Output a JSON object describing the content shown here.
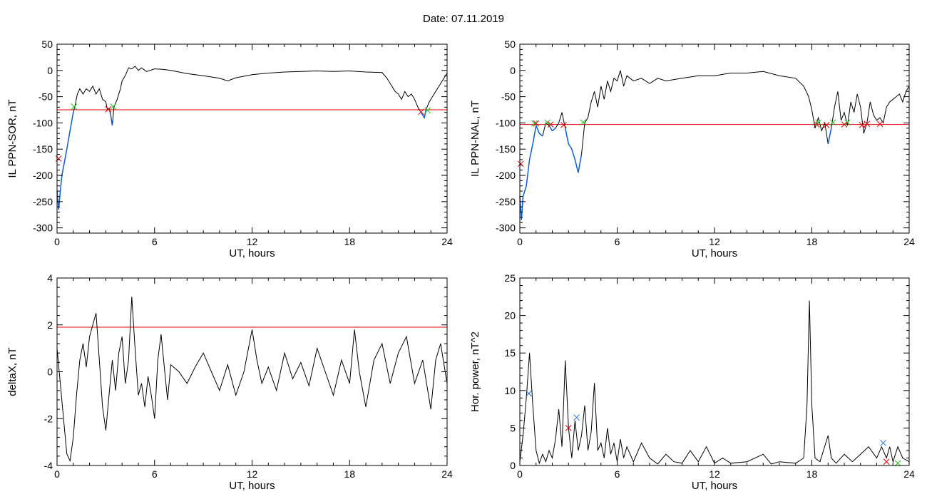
{
  "title": "Date:  07.11.2019",
  "colors": {
    "trace": "#000000",
    "threshold": "#e00000",
    "below": "#1060d0",
    "marker_red": "#e00000",
    "marker_green": "#20c020",
    "marker_blue": "#2070d0"
  },
  "chart_data": [
    {
      "id": "sor",
      "type": "line",
      "xlabel": "UT, hours",
      "ylabel": "IL PPN-SOR, nT",
      "xlim": [
        0,
        24
      ],
      "ylim": [
        -310,
        50
      ],
      "xticks": [
        0,
        6,
        12,
        18,
        24
      ],
      "yticks": [
        -300,
        -250,
        -200,
        -150,
        -100,
        -50,
        0,
        50
      ],
      "threshold": -75,
      "points": [
        [
          0,
          -230
        ],
        [
          0.1,
          -265
        ],
        [
          0.2,
          -230
        ],
        [
          0.3,
          -200
        ],
        [
          0.45,
          -175
        ],
        [
          0.6,
          -150
        ],
        [
          0.8,
          -115
        ],
        [
          1.0,
          -80
        ],
        [
          1.1,
          -68
        ],
        [
          1.25,
          -45
        ],
        [
          1.4,
          -35
        ],
        [
          1.6,
          -45
        ],
        [
          1.8,
          -35
        ],
        [
          2.0,
          -40
        ],
        [
          2.2,
          -30
        ],
        [
          2.4,
          -45
        ],
        [
          2.6,
          -35
        ],
        [
          2.8,
          -55
        ],
        [
          3.0,
          -60
        ],
        [
          3.1,
          -75
        ],
        [
          3.2,
          -72
        ],
        [
          3.3,
          -85
        ],
        [
          3.4,
          -105
        ],
        [
          3.5,
          -70
        ],
        [
          3.7,
          -55
        ],
        [
          3.9,
          -35
        ],
        [
          4.0,
          -20
        ],
        [
          4.2,
          -10
        ],
        [
          4.4,
          5
        ],
        [
          4.6,
          3
        ],
        [
          4.8,
          8
        ],
        [
          5.0,
          0
        ],
        [
          5.2,
          5
        ],
        [
          5.5,
          -2
        ],
        [
          6.0,
          3
        ],
        [
          6.5,
          2
        ],
        [
          7.0,
          0
        ],
        [
          7.5,
          -3
        ],
        [
          8.0,
          -6
        ],
        [
          9.0,
          -10
        ],
        [
          10.0,
          -15
        ],
        [
          10.5,
          -20
        ],
        [
          11.0,
          -14
        ],
        [
          12.0,
          -8
        ],
        [
          13.0,
          -5
        ],
        [
          14.0,
          -3
        ],
        [
          15.0,
          -2
        ],
        [
          16.0,
          -1
        ],
        [
          17.0,
          -2
        ],
        [
          18.0,
          -1
        ],
        [
          19.0,
          -3
        ],
        [
          20.0,
          -4
        ],
        [
          20.3,
          -15
        ],
        [
          20.6,
          -30
        ],
        [
          20.8,
          -40
        ],
        [
          21.0,
          -45
        ],
        [
          21.2,
          -55
        ],
        [
          21.4,
          -40
        ],
        [
          21.6,
          -50
        ],
        [
          21.8,
          -45
        ],
        [
          22.0,
          -55
        ],
        [
          22.2,
          -70
        ],
        [
          22.4,
          -80
        ],
        [
          22.6,
          -90
        ],
        [
          22.7,
          -75
        ],
        [
          22.9,
          -60
        ],
        [
          23.1,
          -50
        ],
        [
          23.3,
          -40
        ],
        [
          23.5,
          -30
        ],
        [
          23.7,
          -20
        ],
        [
          23.9,
          -10
        ],
        [
          24.0,
          -5
        ]
      ],
      "markers": [
        {
          "x": 0.1,
          "y": -168,
          "color": "red"
        },
        {
          "x": 1.05,
          "y": -69,
          "color": "green"
        },
        {
          "x": 3.15,
          "y": -74,
          "color": "red"
        },
        {
          "x": 3.45,
          "y": -69,
          "color": "green"
        },
        {
          "x": 22.4,
          "y": -79,
          "color": "red"
        },
        {
          "x": 22.8,
          "y": -76,
          "color": "green"
        }
      ]
    },
    {
      "id": "nal",
      "type": "line",
      "xlabel": "UT, hours",
      "ylabel": "IL PPN-NAL, nT",
      "xlim": [
        0,
        24
      ],
      "ylim": [
        -310,
        50
      ],
      "xticks": [
        0,
        6,
        12,
        18,
        24
      ],
      "yticks": [
        -300,
        -250,
        -200,
        -150,
        -100,
        -50,
        0,
        50
      ],
      "threshold": -103,
      "points": [
        [
          0,
          -240
        ],
        [
          0.1,
          -285
        ],
        [
          0.2,
          -240
        ],
        [
          0.4,
          -220
        ],
        [
          0.6,
          -170
        ],
        [
          0.8,
          -140
        ],
        [
          1.0,
          -105
        ],
        [
          1.2,
          -120
        ],
        [
          1.4,
          -125
        ],
        [
          1.6,
          -100
        ],
        [
          1.8,
          -105
        ],
        [
          2.0,
          -115
        ],
        [
          2.2,
          -110
        ],
        [
          2.4,
          -100
        ],
        [
          2.6,
          -80
        ],
        [
          2.8,
          -110
        ],
        [
          3.0,
          -140
        ],
        [
          3.2,
          -150
        ],
        [
          3.4,
          -170
        ],
        [
          3.6,
          -195
        ],
        [
          3.8,
          -160
        ],
        [
          4.0,
          -100
        ],
        [
          4.2,
          -90
        ],
        [
          4.4,
          -60
        ],
        [
          4.6,
          -40
        ],
        [
          4.8,
          -70
        ],
        [
          5.0,
          -30
        ],
        [
          5.2,
          -55
        ],
        [
          5.4,
          -20
        ],
        [
          5.6,
          -40
        ],
        [
          5.8,
          -15
        ],
        [
          6.0,
          -20
        ],
        [
          6.2,
          0
        ],
        [
          6.4,
          -30
        ],
        [
          6.6,
          -10
        ],
        [
          6.8,
          -15
        ],
        [
          7.0,
          -20
        ],
        [
          7.5,
          -15
        ],
        [
          8.0,
          -25
        ],
        [
          8.5,
          -15
        ],
        [
          9.0,
          -20
        ],
        [
          10.0,
          -15
        ],
        [
          11.0,
          -10
        ],
        [
          12.0,
          -10
        ],
        [
          13.0,
          -5
        ],
        [
          14.0,
          -5
        ],
        [
          15.0,
          -2
        ],
        [
          16.0,
          -10
        ],
        [
          17.0,
          -15
        ],
        [
          17.5,
          -30
        ],
        [
          17.8,
          -50
        ],
        [
          18.0,
          -75
        ],
        [
          18.2,
          -110
        ],
        [
          18.4,
          -90
        ],
        [
          18.6,
          -115
        ],
        [
          18.8,
          -100
        ],
        [
          19.0,
          -140
        ],
        [
          19.2,
          -110
        ],
        [
          19.4,
          -70
        ],
        [
          19.6,
          -40
        ],
        [
          19.8,
          -95
        ],
        [
          20.0,
          -80
        ],
        [
          20.2,
          -105
        ],
        [
          20.4,
          -60
        ],
        [
          20.6,
          -80
        ],
        [
          20.8,
          -45
        ],
        [
          21.0,
          -70
        ],
        [
          21.2,
          -120
        ],
        [
          21.4,
          -100
        ],
        [
          21.6,
          -60
        ],
        [
          21.8,
          -85
        ],
        [
          22.0,
          -95
        ],
        [
          22.2,
          -90
        ],
        [
          22.4,
          -100
        ],
        [
          22.6,
          -70
        ],
        [
          22.8,
          -60
        ],
        [
          23.0,
          -55
        ],
        [
          23.2,
          -50
        ],
        [
          23.4,
          -45
        ],
        [
          23.6,
          -60
        ],
        [
          23.8,
          -40
        ],
        [
          24.0,
          -30
        ]
      ],
      "markers": [
        {
          "x": 0.05,
          "y": -178,
          "color": "red"
        },
        {
          "x": 0.9,
          "y": -101,
          "color": "green"
        },
        {
          "x": 1.0,
          "y": -101,
          "color": "red"
        },
        {
          "x": 1.7,
          "y": -99,
          "color": "green"
        },
        {
          "x": 1.9,
          "y": -103,
          "color": "red"
        },
        {
          "x": 2.7,
          "y": -104,
          "color": "red"
        },
        {
          "x": 3.9,
          "y": -99,
          "color": "green"
        },
        {
          "x": 18.3,
          "y": -103,
          "color": "red"
        },
        {
          "x": 18.4,
          "y": -99,
          "color": "green"
        },
        {
          "x": 18.9,
          "y": -104,
          "color": "red"
        },
        {
          "x": 19.3,
          "y": -99,
          "color": "green"
        },
        {
          "x": 20.0,
          "y": -103,
          "color": "red"
        },
        {
          "x": 20.2,
          "y": -99,
          "color": "green"
        },
        {
          "x": 21.1,
          "y": -104,
          "color": "red"
        },
        {
          "x": 21.4,
          "y": -102,
          "color": "red"
        },
        {
          "x": 22.2,
          "y": -102,
          "color": "red"
        }
      ]
    },
    {
      "id": "deltax",
      "type": "line",
      "xlabel": "UT, hours",
      "ylabel": "deltaX, nT",
      "xlim": [
        0,
        24
      ],
      "ylim": [
        -4,
        4
      ],
      "xticks": [
        0,
        6,
        12,
        18,
        24
      ],
      "yticks": [
        -4,
        -2,
        0,
        2,
        4
      ],
      "threshold": 1.9,
      "points": [
        [
          0,
          1.0
        ],
        [
          0.2,
          -0.5
        ],
        [
          0.4,
          -2.0
        ],
        [
          0.6,
          -3.5
        ],
        [
          0.8,
          -3.8
        ],
        [
          1.0,
          -2.8
        ],
        [
          1.2,
          -1.0
        ],
        [
          1.4,
          0.5
        ],
        [
          1.6,
          1.2
        ],
        [
          1.8,
          0.2
        ],
        [
          2.0,
          1.5
        ],
        [
          2.2,
          2.0
        ],
        [
          2.4,
          2.5
        ],
        [
          2.6,
          0.5
        ],
        [
          2.8,
          -1.5
        ],
        [
          3.0,
          -2.5
        ],
        [
          3.2,
          -1.0
        ],
        [
          3.4,
          0.5
        ],
        [
          3.6,
          -0.8
        ],
        [
          3.8,
          0.8
        ],
        [
          4.0,
          1.5
        ],
        [
          4.2,
          -0.5
        ],
        [
          4.4,
          0.5
        ],
        [
          4.6,
          3.2
        ],
        [
          4.8,
          1.0
        ],
        [
          5.0,
          -1.0
        ],
        [
          5.2,
          -0.5
        ],
        [
          5.4,
          -1.5
        ],
        [
          5.6,
          -0.2
        ],
        [
          5.8,
          -1.0
        ],
        [
          6.0,
          -2.0
        ],
        [
          6.2,
          0.5
        ],
        [
          6.4,
          1.6
        ],
        [
          6.6,
          0.2
        ],
        [
          6.8,
          -1.2
        ],
        [
          7.0,
          0.3
        ],
        [
          7.5,
          0.0
        ],
        [
          8.0,
          -0.5
        ],
        [
          8.5,
          0.2
        ],
        [
          9.0,
          0.8
        ],
        [
          9.5,
          0.0
        ],
        [
          10.0,
          -0.8
        ],
        [
          10.5,
          0.3
        ],
        [
          11.0,
          -1.0
        ],
        [
          11.5,
          0.0
        ],
        [
          12.0,
          1.8
        ],
        [
          12.3,
          0.5
        ],
        [
          12.6,
          -0.5
        ],
        [
          13.0,
          0.2
        ],
        [
          13.5,
          -0.8
        ],
        [
          14.0,
          0.8
        ],
        [
          14.5,
          -0.3
        ],
        [
          15.0,
          0.4
        ],
        [
          15.5,
          -0.6
        ],
        [
          16.0,
          1.0
        ],
        [
          16.5,
          0.0
        ],
        [
          17.0,
          -1.0
        ],
        [
          17.5,
          0.5
        ],
        [
          18.0,
          -0.5
        ],
        [
          18.3,
          1.8
        ],
        [
          18.6,
          0.0
        ],
        [
          19.0,
          -1.5
        ],
        [
          19.5,
          0.5
        ],
        [
          20.0,
          1.2
        ],
        [
          20.5,
          -0.5
        ],
        [
          21.0,
          0.8
        ],
        [
          21.5,
          1.5
        ],
        [
          22.0,
          -0.5
        ],
        [
          22.5,
          0.5
        ],
        [
          23.0,
          -1.6
        ],
        [
          23.3,
          0.5
        ],
        [
          23.6,
          1.2
        ],
        [
          24.0,
          -0.5
        ]
      ]
    },
    {
      "id": "power",
      "type": "line",
      "xlabel": "UT, hours",
      "ylabel": "Hor. power, nT^2",
      "xlim": [
        0,
        24
      ],
      "ylim": [
        0,
        25
      ],
      "xticks": [
        0,
        6,
        12,
        18,
        24
      ],
      "yticks": [
        0,
        5,
        10,
        15,
        20,
        25
      ],
      "threshold": 25,
      "points": [
        [
          0,
          0.5
        ],
        [
          0.2,
          4.0
        ],
        [
          0.4,
          9.0
        ],
        [
          0.6,
          15.0
        ],
        [
          0.8,
          8.0
        ],
        [
          1.0,
          2.0
        ],
        [
          1.2,
          0.3
        ],
        [
          1.4,
          1.5
        ],
        [
          1.6,
          0.5
        ],
        [
          1.8,
          2.0
        ],
        [
          2.0,
          1.0
        ],
        [
          2.2,
          3.5
        ],
        [
          2.4,
          7.5
        ],
        [
          2.6,
          2.5
        ],
        [
          2.8,
          14.0
        ],
        [
          3.0,
          5.0
        ],
        [
          3.2,
          1.0
        ],
        [
          3.4,
          6.0
        ],
        [
          3.6,
          2.0
        ],
        [
          3.8,
          4.0
        ],
        [
          4.0,
          8.0
        ],
        [
          4.2,
          2.0
        ],
        [
          4.4,
          4.5
        ],
        [
          4.6,
          11.0
        ],
        [
          4.8,
          2.0
        ],
        [
          5.0,
          3.0
        ],
        [
          5.2,
          1.0
        ],
        [
          5.4,
          5.0
        ],
        [
          5.6,
          1.5
        ],
        [
          5.8,
          3.0
        ],
        [
          6.0,
          0.5
        ],
        [
          6.2,
          3.5
        ],
        [
          6.4,
          1.0
        ],
        [
          6.6,
          2.5
        ],
        [
          7.0,
          0.5
        ],
        [
          7.5,
          3.0
        ],
        [
          8.0,
          1.0
        ],
        [
          8.5,
          0.2
        ],
        [
          9.0,
          1.5
        ],
        [
          9.5,
          0.5
        ],
        [
          10.0,
          0.3
        ],
        [
          10.5,
          2.0
        ],
        [
          11.0,
          0.5
        ],
        [
          11.5,
          2.5
        ],
        [
          12.0,
          0.3
        ],
        [
          12.5,
          1.0
        ],
        [
          13.0,
          0.3
        ],
        [
          14.0,
          0.5
        ],
        [
          15.0,
          1.5
        ],
        [
          15.5,
          0.2
        ],
        [
          16.0,
          0.5
        ],
        [
          17.0,
          0.3
        ],
        [
          17.5,
          1.0
        ],
        [
          17.7,
          8.0
        ],
        [
          17.85,
          22.0
        ],
        [
          18.0,
          8.0
        ],
        [
          18.2,
          1.0
        ],
        [
          18.5,
          0.5
        ],
        [
          19.0,
          4.0
        ],
        [
          19.2,
          1.0
        ],
        [
          19.5,
          0.3
        ],
        [
          20.0,
          1.5
        ],
        [
          20.5,
          0.5
        ],
        [
          21.0,
          1.5
        ],
        [
          21.5,
          2.5
        ],
        [
          22.0,
          1.0
        ],
        [
          22.3,
          2.5
        ],
        [
          22.6,
          1.0
        ],
        [
          22.8,
          2.5
        ],
        [
          23.0,
          0.5
        ],
        [
          23.3,
          2.5
        ],
        [
          23.6,
          1.0
        ],
        [
          24.0,
          0.5
        ]
      ],
      "markers": [
        {
          "x": 0.55,
          "y": 9.6,
          "color": "blue"
        },
        {
          "x": 3.0,
          "y": 5.0,
          "color": "red"
        },
        {
          "x": 3.5,
          "y": 6.4,
          "color": "blue"
        },
        {
          "x": 22.4,
          "y": 3.0,
          "color": "blue"
        },
        {
          "x": 22.6,
          "y": 0.5,
          "color": "red"
        },
        {
          "x": 23.3,
          "y": 0.3,
          "color": "green"
        }
      ]
    }
  ]
}
